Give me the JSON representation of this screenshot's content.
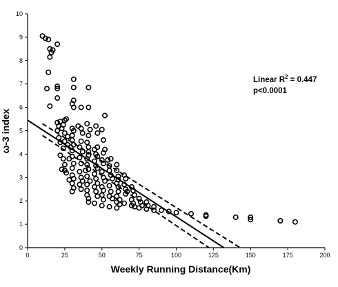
{
  "chart_data": {
    "type": "scatter",
    "xlabel": "Weekly Running Distance(Km)",
    "ylabel": "ω-3 index",
    "xlim": [
      0,
      200
    ],
    "ylim": [
      0,
      10
    ],
    "x_ticks": [
      "0",
      "25",
      "50",
      "75",
      "100",
      "125",
      "150",
      "175",
      "200"
    ],
    "y_ticks": [
      "0",
      "1",
      "2",
      "3",
      "4",
      "5",
      "6",
      "7",
      "8",
      "9",
      "10"
    ],
    "grid": false,
    "annotation": {
      "line1_prefix": "Linear R",
      "line1_sup": "2",
      "line1_suffix": " = 0.447",
      "line2": "p<0.0001"
    },
    "regression": {
      "fit": {
        "x1": 0,
        "y1": 5.45,
        "x2": 132,
        "y2": 0
      },
      "upper_ci": {
        "x1": 10,
        "y1": 5.3,
        "x2": 143,
        "y2": 0
      },
      "lower_ci": {
        "x1": 10,
        "y1": 4.8,
        "x2": 122,
        "y2": 0
      }
    },
    "points": [
      [
        10,
        9.05
      ],
      [
        12,
        8.95
      ],
      [
        14,
        8.9
      ],
      [
        15,
        8.5
      ],
      [
        16,
        8.35
      ],
      [
        15,
        8.15
      ],
      [
        17,
        8.45
      ],
      [
        20,
        8.7
      ],
      [
        14,
        7.5
      ],
      [
        13,
        6.8
      ],
      [
        20,
        6.9
      ],
      [
        20,
        6.8
      ],
      [
        15,
        6.05
      ],
      [
        20,
        6.4
      ],
      [
        31,
        7.2
      ],
      [
        31,
        6.85
      ],
      [
        41,
        6.85
      ],
      [
        31,
        6.3
      ],
      [
        30,
        6.15
      ],
      [
        31,
        6.0
      ],
      [
        36,
        6.0
      ],
      [
        41,
        6.0
      ],
      [
        20,
        5.35
      ],
      [
        21,
        5.2
      ],
      [
        22,
        5.4
      ],
      [
        25,
        5.45
      ],
      [
        26,
        5.5
      ],
      [
        24,
        5.25
      ],
      [
        23,
        5.1
      ],
      [
        20,
        5.0
      ],
      [
        21,
        4.7
      ],
      [
        25,
        4.9
      ],
      [
        27,
        4.75
      ],
      [
        30,
        5.1
      ],
      [
        31,
        5.0
      ],
      [
        30,
        4.8
      ],
      [
        34,
        5.2
      ],
      [
        36,
        5.1
      ],
      [
        37,
        4.9
      ],
      [
        40,
        5.3
      ],
      [
        42,
        5.05
      ],
      [
        41,
        4.8
      ],
      [
        46,
        5.2
      ],
      [
        47,
        4.9
      ],
      [
        52,
        5.65
      ],
      [
        50,
        5.05
      ],
      [
        22,
        4.5
      ],
      [
        24,
        4.25
      ],
      [
        25,
        4.55
      ],
      [
        27,
        4.4
      ],
      [
        29,
        4.3
      ],
      [
        30,
        4.6
      ],
      [
        30,
        4.15
      ],
      [
        31,
        4.4
      ],
      [
        35,
        4.3
      ],
      [
        36,
        4.55
      ],
      [
        37,
        4.1
      ],
      [
        40,
        4.5
      ],
      [
        41,
        4.3
      ],
      [
        41,
        4.1
      ],
      [
        45,
        4.2
      ],
      [
        46,
        4.0
      ],
      [
        47,
        4.3
      ],
      [
        51,
        4.6
      ],
      [
        52,
        4.2
      ],
      [
        51,
        4.05
      ],
      [
        22,
        3.95
      ],
      [
        24,
        3.8
      ],
      [
        25,
        3.55
      ],
      [
        28,
        3.8
      ],
      [
        30,
        3.9
      ],
      [
        31,
        3.6
      ],
      [
        35,
        3.85
      ],
      [
        36,
        3.6
      ],
      [
        40,
        3.8
      ],
      [
        40,
        3.55
      ],
      [
        41,
        3.95
      ],
      [
        45,
        3.7
      ],
      [
        46,
        3.5
      ],
      [
        47,
        3.9
      ],
      [
        50,
        3.75
      ],
      [
        51,
        3.6
      ],
      [
        54,
        3.75
      ],
      [
        55,
        3.5
      ],
      [
        56,
        3.8
      ],
      [
        23,
        3.35
      ],
      [
        25,
        3.3
      ],
      [
        26,
        3.2
      ],
      [
        30,
        3.4
      ],
      [
        30,
        3.1
      ],
      [
        31,
        2.95
      ],
      [
        35,
        3.25
      ],
      [
        36,
        3.0
      ],
      [
        39,
        3.3
      ],
      [
        40,
        3.05
      ],
      [
        41,
        3.35
      ],
      [
        45,
        3.15
      ],
      [
        46,
        2.95
      ],
      [
        47,
        3.4
      ],
      [
        50,
        3.25
      ],
      [
        51,
        3.0
      ],
      [
        55,
        3.3
      ],
      [
        56,
        3.1
      ],
      [
        57,
        2.95
      ],
      [
        60,
        3.55
      ],
      [
        60,
        3.3
      ],
      [
        61,
        3.05
      ],
      [
        61,
        2.9
      ],
      [
        65,
        3.1
      ],
      [
        66,
        2.95
      ],
      [
        30,
        2.75
      ],
      [
        31,
        2.55
      ],
      [
        30,
        2.4
      ],
      [
        35,
        2.7
      ],
      [
        36,
        2.5
      ],
      [
        40,
        2.7
      ],
      [
        40,
        2.45
      ],
      [
        40,
        2.25
      ],
      [
        41,
        2.1
      ],
      [
        41,
        1.95
      ],
      [
        45,
        2.6
      ],
      [
        46,
        2.4
      ],
      [
        47,
        2.2
      ],
      [
        50,
        2.6
      ],
      [
        51,
        2.45
      ],
      [
        50,
        2.25
      ],
      [
        51,
        2.05
      ],
      [
        55,
        2.65
      ],
      [
        56,
        2.4
      ],
      [
        55,
        2.2
      ],
      [
        57,
        2.1
      ],
      [
        60,
        2.75
      ],
      [
        61,
        2.6
      ],
      [
        61,
        2.4
      ],
      [
        60,
        2.2
      ],
      [
        62,
        2.05
      ],
      [
        65,
        2.7
      ],
      [
        66,
        2.5
      ],
      [
        67,
        2.4
      ],
      [
        70,
        2.6
      ],
      [
        71,
        2.45
      ],
      [
        72,
        2.25
      ],
      [
        70,
        2.05
      ],
      [
        71,
        1.9
      ],
      [
        70,
        1.8
      ],
      [
        72,
        1.75
      ],
      [
        75,
        2.1
      ],
      [
        76,
        1.95
      ],
      [
        77,
        1.8
      ],
      [
        80,
        1.95
      ],
      [
        81,
        1.8
      ],
      [
        85,
        1.75
      ],
      [
        85,
        1.6
      ],
      [
        90,
        1.6
      ],
      [
        95,
        1.55
      ],
      [
        100,
        1.5
      ],
      [
        110,
        1.45
      ],
      [
        120,
        1.4
      ],
      [
        120,
        1.35
      ],
      [
        140,
        1.3
      ],
      [
        150,
        1.3
      ],
      [
        150,
        1.2
      ],
      [
        170,
        1.15
      ],
      [
        180,
        1.1
      ],
      [
        65,
        1.9
      ],
      [
        62,
        1.85
      ],
      [
        55,
        1.75
      ],
      [
        50,
        1.8
      ],
      [
        45,
        1.9
      ],
      [
        66,
        2.3
      ],
      [
        60,
        1.95
      ],
      [
        75,
        1.7
      ],
      [
        80,
        1.65
      ],
      [
        42,
        2.85
      ],
      [
        37,
        2.85
      ],
      [
        52,
        2.85
      ],
      [
        47,
        2.75
      ],
      [
        28,
        2.9
      ],
      [
        60,
        1.7
      ]
    ]
  }
}
